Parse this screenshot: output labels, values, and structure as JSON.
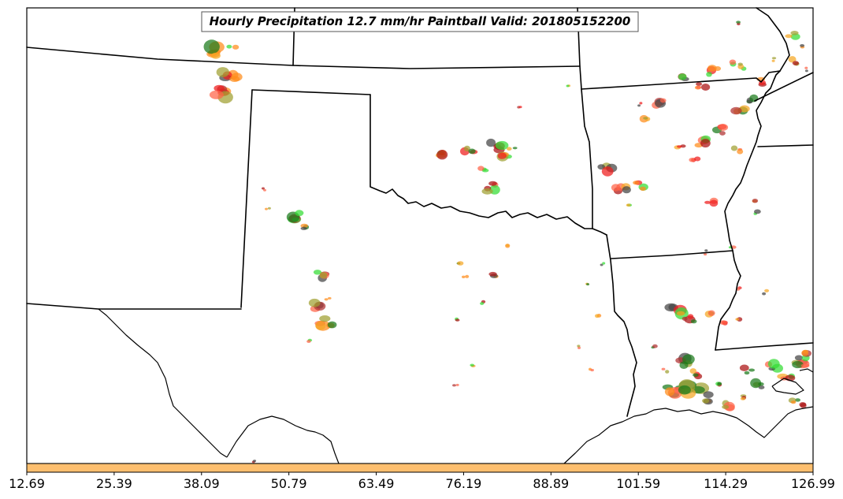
{
  "title": "Hourly Precipitation 12.7 mm/hr Paintball Valid: 201805152200",
  "colorbar": {
    "color": "#fdbf6f",
    "tick_labels": [
      "12.69",
      "25.39",
      "38.09",
      "50.79",
      "63.49",
      "76.19",
      "88.89",
      "101.59",
      "114.29",
      "126.99"
    ]
  },
  "member_colors": [
    "#33dd33",
    "#1a7a1a",
    "#ee1c1c",
    "#aa1111",
    "#ff8c1a",
    "#f5a623",
    "#a0a030",
    "#444444",
    "#b03030",
    "#ff6347"
  ]
}
